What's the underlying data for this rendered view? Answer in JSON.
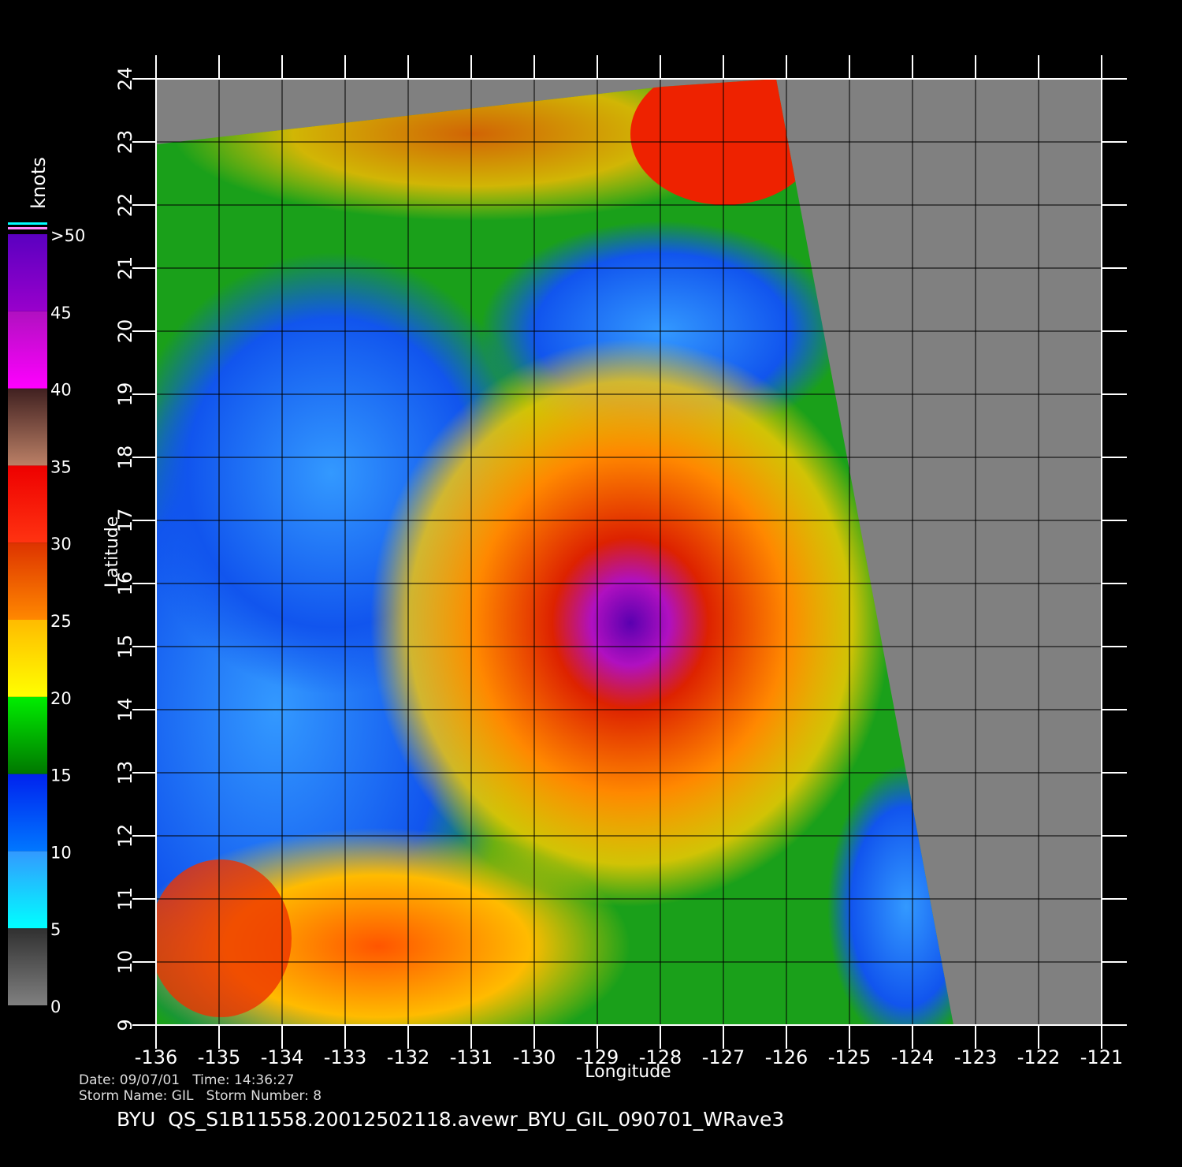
{
  "chart_data": {
    "type": "wind-map",
    "xlabel": "Longitude",
    "ylabel": "Latitude",
    "xlim": [
      -136,
      -121
    ],
    "ylim": [
      9,
      24
    ],
    "xticks": [
      -136,
      -135,
      -134,
      -133,
      -132,
      -131,
      -130,
      -129,
      -128,
      -127,
      -126,
      -125,
      -124,
      -123,
      -122,
      -121
    ],
    "yticks": [
      9,
      10,
      11,
      12,
      13,
      14,
      15,
      16,
      17,
      18,
      19,
      20,
      21,
      22,
      23,
      24
    ],
    "grid": true,
    "colorbar": {
      "label": "knots",
      "ticks": [
        0,
        5,
        10,
        15,
        20,
        25,
        30,
        35,
        40,
        45,
        {
          "value": 50,
          "label": ">50"
        }
      ],
      "colors": [
        [
          "#808080",
          "#303030"
        ],
        [
          "#00ffff",
          "#3399ff"
        ],
        [
          "#0077ff",
          "#0022ee"
        ],
        [
          "#007700",
          "#00ee00"
        ],
        [
          "#ffff00",
          "#ffbb00"
        ],
        [
          "#ff8800",
          "#dd3300"
        ],
        [
          "#ff3311",
          "#ee0000"
        ],
        [
          "#bb8066",
          "#402020"
        ],
        [
          "#ff00ff",
          "#b010c0"
        ],
        [
          "#9900cc",
          "#5a00c0"
        ]
      ]
    },
    "footer": {
      "date": "Date: 09/07/01   Time: 14:36:27",
      "storm": "Storm Name: GIL   Storm Number: 8",
      "file": "BYU  QS_S1B11558.20012502118.avewr_BYU_GIL_090701_WRave3"
    }
  }
}
